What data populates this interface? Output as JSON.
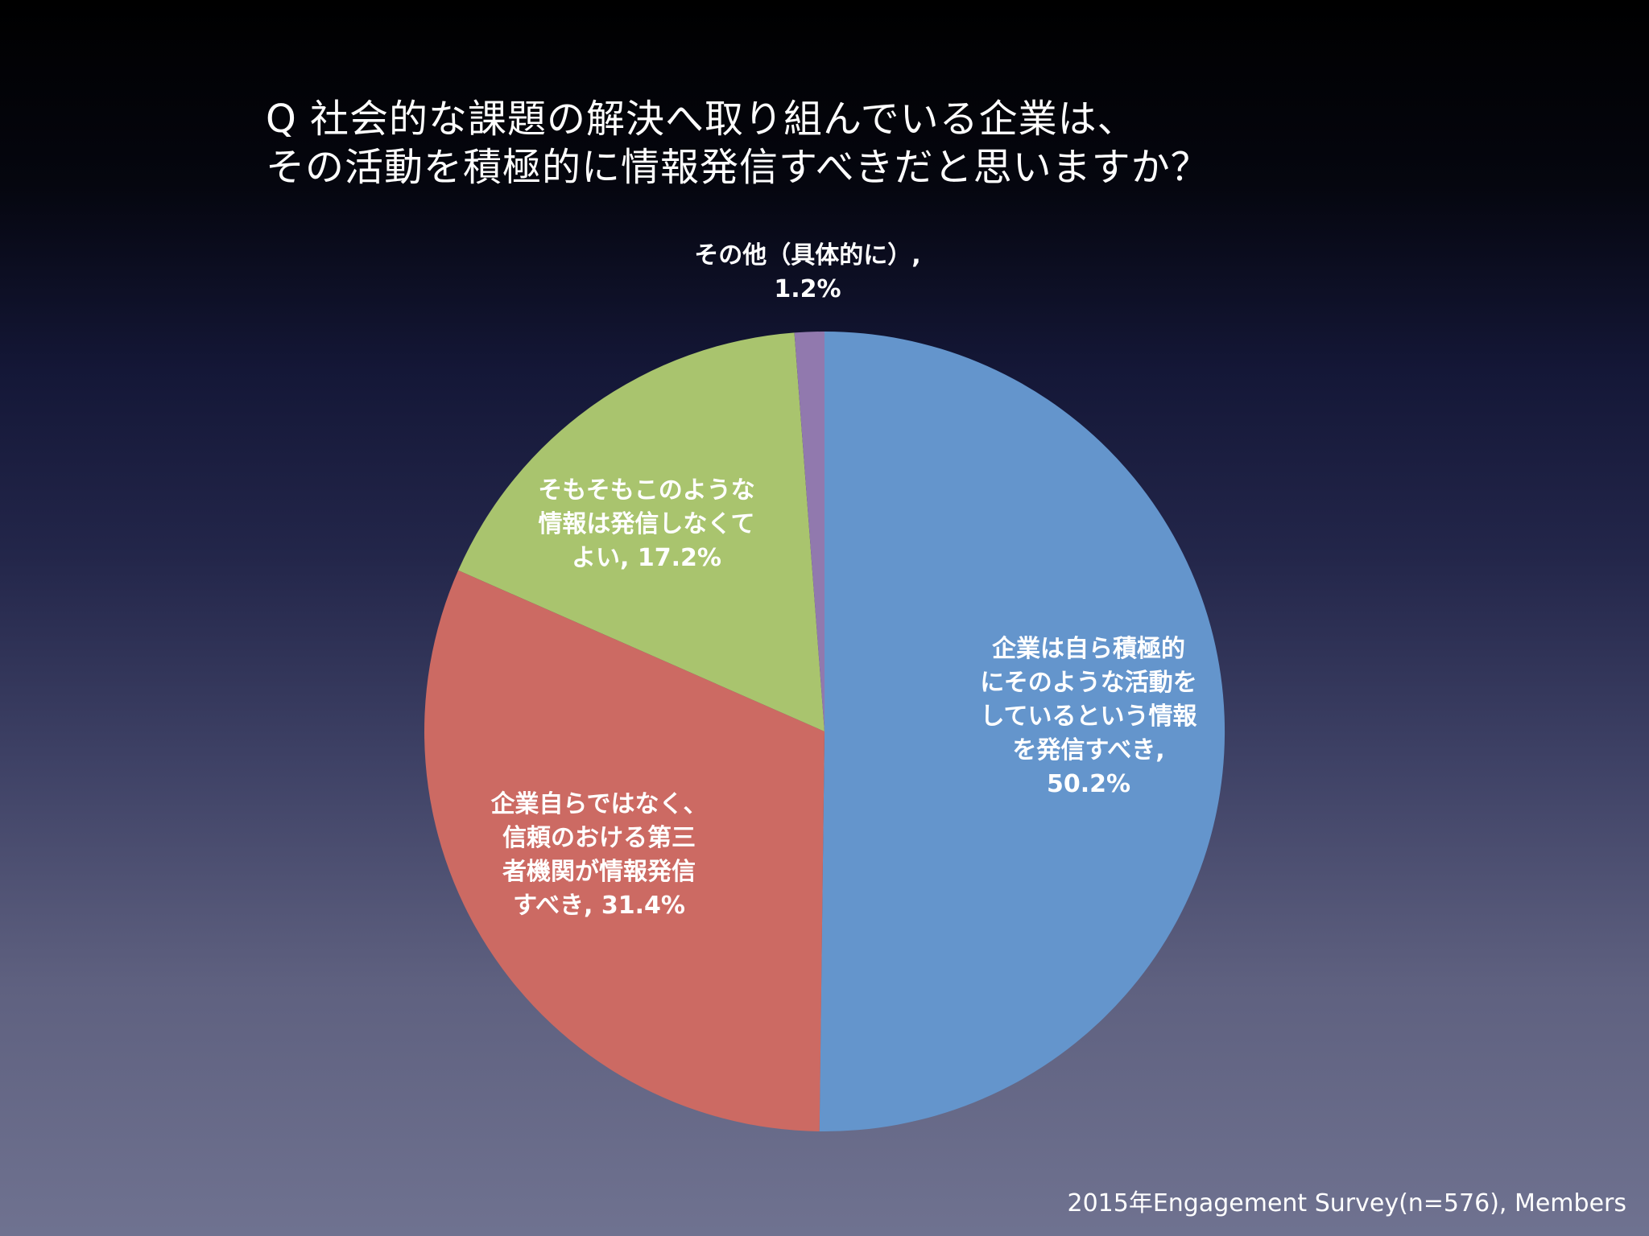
{
  "slide": {
    "title_line1": "Q 社会的な課題の解決へ取り組んでいる企業は、",
    "title_line2": "その活動を積極的に情報発信すべきだと思いますか？",
    "footer": "2015年Engagement Survey(n=576), Members"
  },
  "chart_data": {
    "type": "pie",
    "title": "",
    "start": "12 o'clock",
    "direction": "clockwise",
    "legend": "none",
    "slices": [
      {
        "label_lines": [
          "企業は自ら積極的",
          "にそのような活動を",
          "しているという情報",
          "を発信すべき,",
          "50.2%"
        ],
        "category": "企業は自ら積極的にそのような活動をしているという情報を発信すべき",
        "value": 50.2,
        "color": "#6495cc"
      },
      {
        "label_lines": [
          "企業自らではなく、",
          "信頼のおける第三",
          "者機関が情報発信",
          "すべき, 31.4%"
        ],
        "category": "企業自らではなく、信頼のおける第三者機関が情報発信すべき",
        "value": 31.4,
        "color": "#cc6a63"
      },
      {
        "label_lines": [
          "そもそもこのような",
          "情報は発信しなくて",
          "よい, 17.2%"
        ],
        "category": "そもそもこのような情報は発信しなくてよい",
        "value": 17.2,
        "color": "#a9c46e"
      },
      {
        "label_lines": [
          "その他（具体的に）,",
          "1.2%"
        ],
        "category": "その他（具体的に）",
        "value": 1.2,
        "color": "#9179ae"
      }
    ]
  }
}
